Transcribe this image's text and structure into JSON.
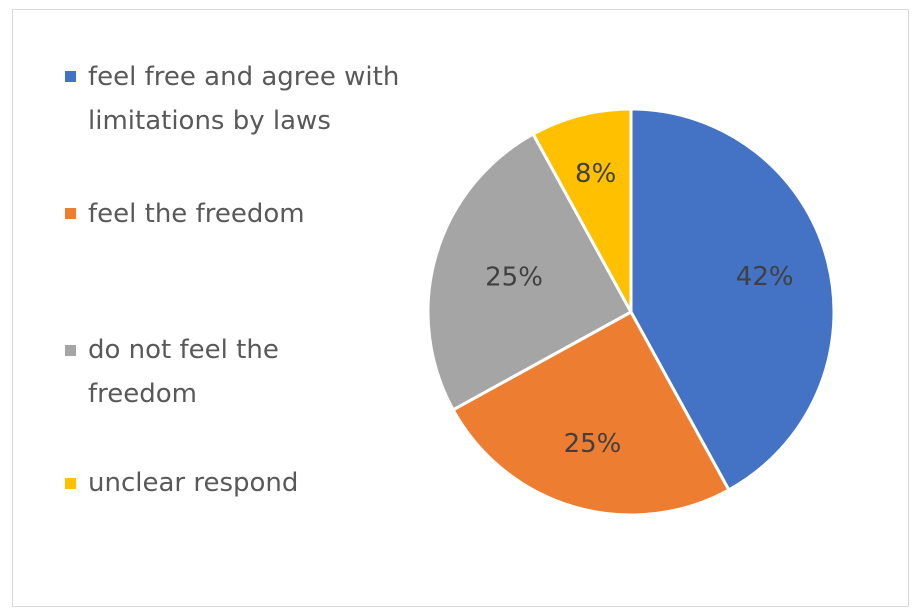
{
  "chart_data": {
    "type": "pie",
    "categories": [
      "feel free and agree with limitations by laws",
      "feel the freedom",
      "do not feel the freedom",
      "unclear respond"
    ],
    "values": [
      42,
      25,
      25,
      8
    ],
    "labels": [
      "42%",
      "25%",
      "25%",
      "8%"
    ],
    "colors": [
      "#4472C4",
      "#ED7D31",
      "#A5A5A5",
      "#FFC000"
    ],
    "legend_position": "left",
    "start_angle_deg": 0,
    "direction": "clockwise",
    "slice_border": "#FFFFFF"
  },
  "legend": {
    "items": [
      {
        "label": "feel free and agree with limitations by laws"
      },
      {
        "label": "feel the freedom"
      },
      {
        "label": "do not feel the freedom"
      },
      {
        "label": "unclear respond"
      }
    ]
  }
}
